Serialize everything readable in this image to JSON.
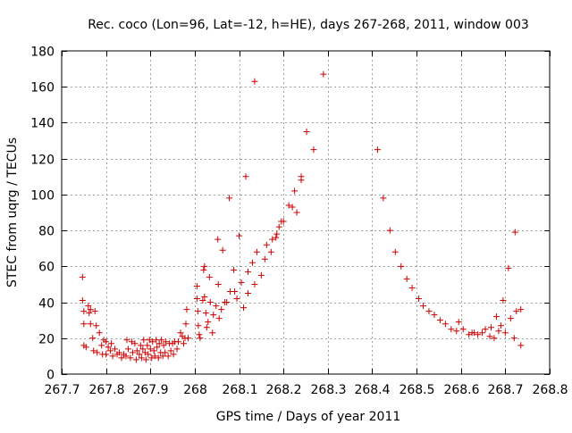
{
  "chart_data": {
    "type": "scatter",
    "title": "Rec. coco (Lon=96, Lat=-12, h=HE), days 267-268, 2011, window 003",
    "xlabel": "GPS time / Days of year 2011",
    "ylabel": "STEC from uqrg / TECUs",
    "xlim": [
      267.7,
      268.8
    ],
    "ylim": [
      0,
      180
    ],
    "xticks": [
      "267.7",
      "267.8",
      "267.9",
      "268",
      "268.1",
      "268.2",
      "268.3",
      "268.4",
      "268.5",
      "268.6",
      "268.7",
      "268.8"
    ],
    "yticks": [
      "0",
      "20",
      "40",
      "60",
      "80",
      "100",
      "120",
      "140",
      "160",
      "180"
    ],
    "grid": true,
    "marker": "plus",
    "marker_color": "#cc0000",
    "series": [
      {
        "points": [
          [
            267.747,
            54
          ],
          [
            267.747,
            41
          ],
          [
            267.75,
            35
          ],
          [
            267.75,
            28
          ],
          [
            267.75,
            16
          ],
          [
            267.755,
            15
          ],
          [
            267.76,
            38
          ],
          [
            267.762,
            34
          ],
          [
            267.765,
            36
          ],
          [
            267.765,
            28
          ],
          [
            267.77,
            20
          ],
          [
            267.772,
            13
          ],
          [
            267.775,
            35
          ],
          [
            267.778,
            27
          ],
          [
            267.78,
            12
          ],
          [
            267.785,
            23
          ],
          [
            267.79,
            16
          ],
          [
            267.792,
            11
          ],
          [
            267.795,
            19
          ],
          [
            267.8,
            18
          ],
          [
            267.8,
            11
          ],
          [
            267.805,
            15
          ],
          [
            267.81,
            13
          ],
          [
            267.812,
            17
          ],
          [
            267.815,
            10
          ],
          [
            267.82,
            14
          ],
          [
            267.825,
            11
          ],
          [
            267.83,
            12
          ],
          [
            267.835,
            9
          ],
          [
            267.84,
            11
          ],
          [
            267.845,
            10
          ],
          [
            267.847,
            19
          ],
          [
            267.85,
            14
          ],
          [
            267.855,
            9
          ],
          [
            267.858,
            18
          ],
          [
            267.86,
            12
          ],
          [
            267.865,
            17
          ],
          [
            267.868,
            8
          ],
          [
            267.87,
            13
          ],
          [
            267.875,
            11
          ],
          [
            267.878,
            16
          ],
          [
            267.88,
            9
          ],
          [
            267.883,
            14
          ],
          [
            267.885,
            19
          ],
          [
            267.888,
            12
          ],
          [
            267.89,
            8
          ],
          [
            267.893,
            16
          ],
          [
            267.895,
            11
          ],
          [
            267.898,
            19
          ],
          [
            267.9,
            14
          ],
          [
            267.903,
            9
          ],
          [
            267.905,
            18
          ],
          [
            267.908,
            13
          ],
          [
            267.91,
            10
          ],
          [
            267.913,
            19
          ],
          [
            267.915,
            15
          ],
          [
            267.918,
            9
          ],
          [
            267.92,
            17
          ],
          [
            267.923,
            12
          ],
          [
            267.925,
            19
          ],
          [
            267.928,
            10
          ],
          [
            267.93,
            16
          ],
          [
            267.933,
            12
          ],
          [
            267.935,
            18
          ],
          [
            267.94,
            10
          ],
          [
            267.943,
            17
          ],
          [
            267.946,
            13
          ],
          [
            267.95,
            17
          ],
          [
            267.952,
            11
          ],
          [
            267.955,
            18
          ],
          [
            267.96,
            14
          ],
          [
            267.963,
            18
          ],
          [
            267.968,
            23
          ],
          [
            267.972,
            21
          ],
          [
            267.975,
            17
          ],
          [
            267.978,
            20
          ],
          [
            267.98,
            28
          ],
          [
            267.982,
            36
          ],
          [
            267.985,
            20
          ],
          [
            268.005,
            49
          ],
          [
            268.005,
            42
          ],
          [
            268.007,
            35
          ],
          [
            268.008,
            27
          ],
          [
            268.01,
            22
          ],
          [
            268.012,
            20
          ],
          [
            268.018,
            41
          ],
          [
            268.02,
            58
          ],
          [
            268.022,
            60
          ],
          [
            268.022,
            43
          ],
          [
            268.025,
            34
          ],
          [
            268.027,
            26
          ],
          [
            268.03,
            29
          ],
          [
            268.033,
            54
          ],
          [
            268.035,
            40
          ],
          [
            268.04,
            23
          ],
          [
            268.042,
            33
          ],
          [
            268.048,
            38
          ],
          [
            268.052,
            75
          ],
          [
            268.053,
            50
          ],
          [
            268.055,
            31
          ],
          [
            268.06,
            36
          ],
          [
            268.063,
            69
          ],
          [
            268.068,
            40
          ],
          [
            268.072,
            40
          ],
          [
            268.078,
            98
          ],
          [
            268.08,
            46
          ],
          [
            268.088,
            58
          ],
          [
            268.09,
            46
          ],
          [
            268.095,
            42
          ],
          [
            268.1,
            77
          ],
          [
            268.105,
            51
          ],
          [
            268.11,
            37
          ],
          [
            268.115,
            110
          ],
          [
            268.12,
            57
          ],
          [
            268.12,
            45
          ],
          [
            268.13,
            62
          ],
          [
            268.135,
            163
          ],
          [
            268.135,
            50
          ],
          [
            268.14,
            68
          ],
          [
            268.15,
            55
          ],
          [
            268.158,
            64
          ],
          [
            268.162,
            72
          ],
          [
            268.172,
            68
          ],
          [
            268.175,
            75
          ],
          [
            268.183,
            76
          ],
          [
            268.185,
            78
          ],
          [
            268.19,
            82
          ],
          [
            268.195,
            85
          ],
          [
            268.2,
            85
          ],
          [
            268.212,
            94
          ],
          [
            268.22,
            93
          ],
          [
            268.225,
            102
          ],
          [
            268.23,
            90
          ],
          [
            268.24,
            108
          ],
          [
            268.24,
            110
          ],
          [
            268.252,
            135
          ],
          [
            268.268,
            125
          ],
          [
            268.29,
            167
          ],
          [
            268.412,
            125
          ],
          [
            268.425,
            98
          ],
          [
            268.44,
            80
          ],
          [
            268.452,
            68
          ],
          [
            268.465,
            60
          ],
          [
            268.478,
            53
          ],
          [
            268.49,
            48
          ],
          [
            268.505,
            42
          ],
          [
            268.515,
            38
          ],
          [
            268.528,
            35
          ],
          [
            268.54,
            33
          ],
          [
            268.553,
            30
          ],
          [
            268.565,
            28
          ],
          [
            268.578,
            25
          ],
          [
            268.59,
            24
          ],
          [
            268.595,
            29
          ],
          [
            268.605,
            25
          ],
          [
            268.618,
            22
          ],
          [
            268.625,
            23
          ],
          [
            268.63,
            23
          ],
          [
            268.638,
            22
          ],
          [
            268.648,
            23
          ],
          [
            268.655,
            25
          ],
          [
            268.665,
            21
          ],
          [
            268.668,
            26
          ],
          [
            268.675,
            20
          ],
          [
            268.68,
            32
          ],
          [
            268.685,
            24
          ],
          [
            268.69,
            27
          ],
          [
            268.695,
            41
          ],
          [
            268.7,
            23
          ],
          [
            268.707,
            59
          ],
          [
            268.712,
            31
          ],
          [
            268.72,
            20
          ],
          [
            268.722,
            79
          ],
          [
            268.725,
            35
          ],
          [
            268.735,
            36
          ],
          [
            268.735,
            16
          ]
        ]
      }
    ]
  }
}
